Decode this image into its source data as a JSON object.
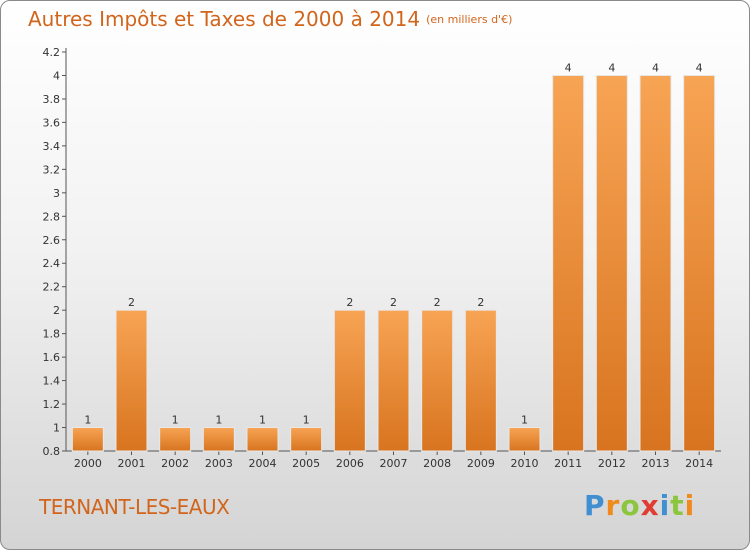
{
  "title": "Autres Impôts et Taxes de 2000 à 2014",
  "title_unit": "(en milliers d'€)",
  "commune": "TERNANT-LES-EAUX",
  "brand": {
    "letters": [
      "P",
      "r",
      "o",
      "x",
      "i",
      "t",
      "i"
    ],
    "colors": [
      "#3f8fd1",
      "#f08a1c",
      "#8cc63f",
      "#e03c31",
      "#3f8fd1",
      "#8cc63f",
      "#f08a1c"
    ]
  },
  "chart_data": {
    "type": "bar",
    "categories": [
      "2000",
      "2001",
      "2002",
      "2003",
      "2004",
      "2005",
      "2006",
      "2007",
      "2008",
      "2009",
      "2010",
      "2011",
      "2012",
      "2013",
      "2014"
    ],
    "values": [
      1,
      2,
      1,
      1,
      1,
      1,
      2,
      2,
      2,
      2,
      1,
      4,
      4,
      4,
      4
    ],
    "data_labels": [
      "1",
      "2",
      "1",
      "1",
      "1",
      "1",
      "2",
      "2",
      "2",
      "2",
      "1",
      "4",
      "4",
      "4",
      "4"
    ],
    "ylim": [
      0.8,
      4.2
    ],
    "yticks": [
      "0.8",
      "1",
      "1.2",
      "1.4",
      "1.6",
      "1.8",
      "2",
      "2.2",
      "2.4",
      "2.6",
      "2.8",
      "3",
      "3.2",
      "3.4",
      "3.6",
      "3.8",
      "4",
      "4.2"
    ],
    "grid": false,
    "bar_color": "#f0912f",
    "xlabel": "",
    "ylabel": ""
  }
}
